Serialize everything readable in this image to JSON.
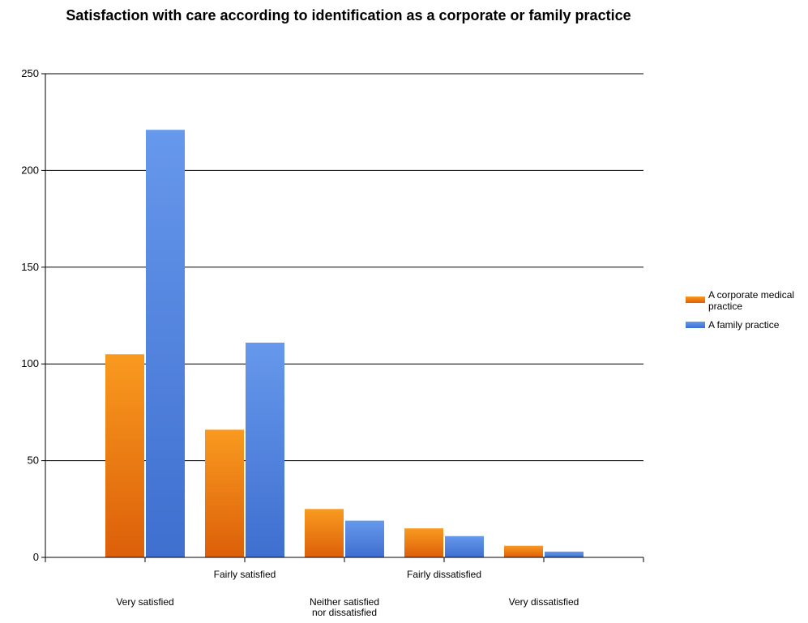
{
  "chart_data": {
    "type": "bar",
    "title": "Satisfaction with care according to identification as a corporate or family practice",
    "categories": [
      "Very satisfied",
      "Fairly satisfied",
      "Neither satisfied nor dissatisfied",
      "Fairly dissatisfied",
      "Very dissatisfied"
    ],
    "series": [
      {
        "name": "A corporate medical practice",
        "values": [
          105,
          66,
          25,
          15,
          6
        ],
        "color": "#e8770b"
      },
      {
        "name": "A family practice",
        "values": [
          221,
          111,
          19,
          11,
          3
        ],
        "color": "#4f81d9"
      }
    ],
    "xlabel": "",
    "ylabel": "",
    "ylim": [
      0,
      250
    ],
    "yticks": [
      0,
      50,
      100,
      150,
      200,
      250
    ],
    "grid": true,
    "legend_position": "right"
  }
}
